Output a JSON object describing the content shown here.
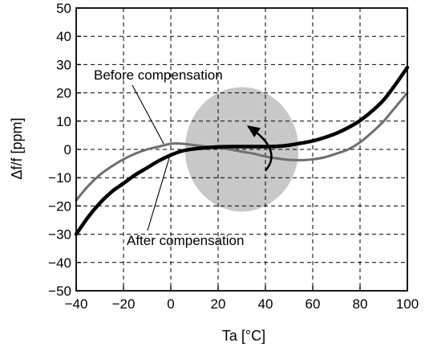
{
  "chart_data": {
    "type": "line",
    "title": "",
    "xlabel": "Ta [°C]",
    "ylabel": "Δf/f [ppm]",
    "xlim": [
      -40,
      100
    ],
    "ylim": [
      -50,
      50
    ],
    "x_ticks": [
      -40,
      -20,
      0,
      20,
      40,
      60,
      80,
      100
    ],
    "y_ticks": [
      -50,
      -40,
      -30,
      -20,
      -10,
      0,
      10,
      20,
      30,
      40,
      50
    ],
    "x_tick_labels": [
      "−40",
      "−20",
      "0",
      "20",
      "40",
      "60",
      "80",
      "100"
    ],
    "y_tick_labels": [
      "−50",
      "−40",
      "−30",
      "−20",
      "−10",
      "0",
      "10",
      "20",
      "30",
      "40",
      "50"
    ],
    "grid": true,
    "legend": "none",
    "series": [
      {
        "name": "Before compensation",
        "color": "#6e6e6e",
        "x": [
          -40,
          -35,
          -30,
          -25,
          -20,
          -15,
          -10,
          -5,
          0,
          5,
          10,
          15,
          20,
          25,
          30,
          35,
          40,
          45,
          50,
          55,
          60,
          65,
          70,
          75,
          80,
          85,
          90,
          95,
          100
        ],
        "y": [
          -18,
          -13,
          -9,
          -6,
          -3.5,
          -1.5,
          0,
          1,
          2,
          2,
          1.5,
          1,
          0.5,
          0,
          -0.8,
          -1.5,
          -2.5,
          -3.2,
          -3.7,
          -3.8,
          -3.5,
          -2.8,
          -1.5,
          0,
          2.5,
          6,
          10,
          15,
          20
        ]
      },
      {
        "name": "After compensation",
        "color": "#000000",
        "x": [
          -40,
          -35,
          -30,
          -25,
          -20,
          -15,
          -10,
          -5,
          0,
          5,
          10,
          15,
          20,
          25,
          30,
          35,
          40,
          45,
          50,
          55,
          60,
          65,
          70,
          75,
          80,
          85,
          90,
          95,
          100
        ],
        "y": [
          -30,
          -24,
          -19,
          -15,
          -12,
          -9,
          -6.5,
          -4,
          -2,
          -0.5,
          0.2,
          0.6,
          0.9,
          1,
          1,
          1,
          1,
          1.1,
          1.5,
          2.2,
          3,
          4.2,
          5.7,
          7.7,
          10.2,
          13.5,
          17.5,
          23,
          29
        ]
      }
    ],
    "annotations": [
      {
        "id": "before",
        "text": "Before compensation",
        "points_to": {
          "x": -3,
          "y": 2.0
        }
      },
      {
        "id": "after",
        "text": "After compensation",
        "points_to": {
          "x": -0.5,
          "y": -2.5
        }
      }
    ],
    "highlight": {
      "shape": "ellipse",
      "center": {
        "x": 30,
        "y": 0
      },
      "rx": 24,
      "ry": 22,
      "color": "#c8c8c8"
    },
    "rotation_arrow": {
      "from": {
        "x": 40,
        "y": -7.5
      },
      "to": {
        "x": 33,
        "y": 8
      }
    }
  }
}
